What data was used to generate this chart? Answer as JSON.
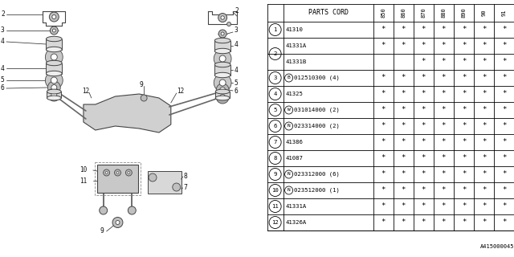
{
  "catalog_number": "A415000045",
  "col_headers": [
    "850",
    "860",
    "870",
    "880",
    "890",
    "90",
    "91"
  ],
  "groups": [
    {
      "num": "1",
      "rows": [
        {
          "part": "41310",
          "marks": [
            1,
            1,
            1,
            1,
            1,
            1,
            1
          ]
        }
      ]
    },
    {
      "num": "2",
      "rows": [
        {
          "part": "41331A",
          "marks": [
            1,
            1,
            1,
            1,
            1,
            1,
            1
          ]
        },
        {
          "part": "41331B",
          "marks": [
            0,
            0,
            1,
            1,
            1,
            1,
            1
          ]
        }
      ]
    },
    {
      "num": "3",
      "rows": [
        {
          "part": "B012510300 (4)",
          "marks": [
            1,
            1,
            1,
            1,
            1,
            1,
            1
          ],
          "prefix": "B"
        }
      ]
    },
    {
      "num": "4",
      "rows": [
        {
          "part": "41325",
          "marks": [
            1,
            1,
            1,
            1,
            1,
            1,
            1
          ]
        }
      ]
    },
    {
      "num": "5",
      "rows": [
        {
          "part": "W031014000 (2)",
          "marks": [
            1,
            1,
            1,
            1,
            1,
            1,
            1
          ],
          "prefix": "W"
        }
      ]
    },
    {
      "num": "6",
      "rows": [
        {
          "part": "N023314000 (2)",
          "marks": [
            1,
            1,
            1,
            1,
            1,
            1,
            1
          ],
          "prefix": "N"
        }
      ]
    },
    {
      "num": "7",
      "rows": [
        {
          "part": "41386",
          "marks": [
            1,
            1,
            1,
            1,
            1,
            1,
            1
          ]
        }
      ]
    },
    {
      "num": "8",
      "rows": [
        {
          "part": "41087",
          "marks": [
            1,
            1,
            1,
            1,
            1,
            1,
            1
          ]
        }
      ]
    },
    {
      "num": "9",
      "rows": [
        {
          "part": "N023312000 (6)",
          "marks": [
            1,
            1,
            1,
            1,
            1,
            1,
            1
          ],
          "prefix": "N"
        }
      ]
    },
    {
      "num": "10",
      "rows": [
        {
          "part": "N023512000 (1)",
          "marks": [
            1,
            1,
            1,
            1,
            1,
            1,
            1
          ],
          "prefix": "N"
        }
      ]
    },
    {
      "num": "11",
      "rows": [
        {
          "part": "41331A",
          "marks": [
            1,
            1,
            1,
            1,
            1,
            1,
            1
          ]
        }
      ]
    },
    {
      "num": "12",
      "rows": [
        {
          "part": "41326A",
          "marks": [
            1,
            1,
            1,
            1,
            1,
            1,
            1
          ]
        }
      ]
    }
  ],
  "bg_color": "#ffffff",
  "line_color": "#000000",
  "text_color": "#000000"
}
